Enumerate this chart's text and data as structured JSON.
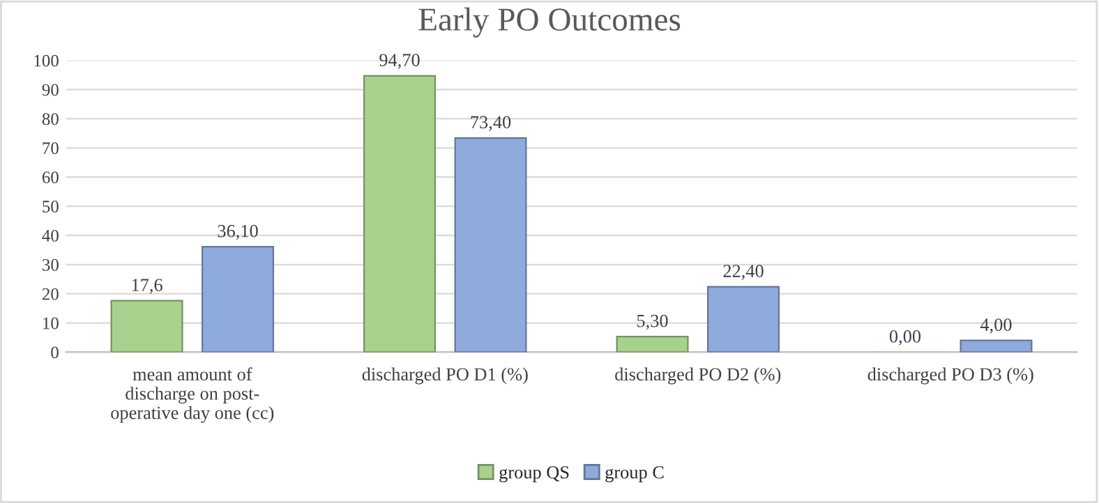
{
  "chart_data": {
    "type": "bar",
    "title": "Early PO Outcomes",
    "categories": [
      "mean amount of\ndischarge on post-\noperative day one (cc)",
      "discharged PO D1 (%)",
      "discharged PO D2 (%)",
      "discharged PO D3 (%)"
    ],
    "series": [
      {
        "name": "group QS",
        "color": "#a9d18e",
        "values": [
          17.6,
          94.7,
          5.3,
          0
        ],
        "value_labels": [
          "17,6",
          "94,70",
          "5,30",
          "0,00"
        ]
      },
      {
        "name": "group C",
        "color": "#8faadc",
        "values": [
          36.1,
          73.4,
          22.4,
          4.0
        ],
        "value_labels": [
          "36,10",
          "73,40",
          "22,40",
          "4,00"
        ]
      }
    ],
    "ylim": [
      0,
      100
    ],
    "yticks": [
      0,
      10,
      20,
      30,
      40,
      50,
      60,
      70,
      80,
      90,
      100
    ],
    "grid": "y",
    "legend": "bottom"
  }
}
